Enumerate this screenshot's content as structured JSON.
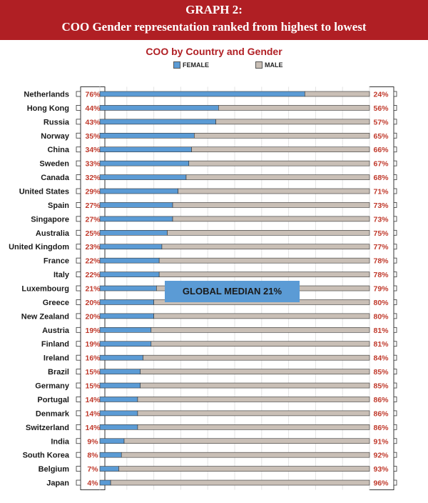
{
  "header": {
    "line1": "GRAPH 2:",
    "line2": "COO Gender representation ranked from highest to lowest"
  },
  "colors": {
    "banner": "#b01f24",
    "female": "#5b9bd5",
    "male": "#c9bfb6",
    "percent_text": "#c0392b"
  },
  "chart_data": {
    "type": "bar",
    "orientation": "horizontal",
    "stacked": true,
    "title": "COO by Country and Gender",
    "legend": [
      "FEMALE",
      "MALE"
    ],
    "legend_position": "top",
    "xlim": [
      0,
      100
    ],
    "categories": [
      "Netherlands",
      "Hong Kong",
      "Russia",
      "Norway",
      "China",
      "Sweden",
      "Canada",
      "United States",
      "Spain",
      "Singapore",
      "Australia",
      "United Kingdom",
      "France",
      "Italy",
      "Luxembourg",
      "Greece",
      "New Zealand",
      "Austria",
      "Finland",
      "Ireland",
      "Brazil",
      "Germany",
      "Portugal",
      "Denmark",
      "Switzerland",
      "India",
      "South Korea",
      "Belgium",
      "Japan"
    ],
    "series": [
      {
        "name": "FEMALE",
        "values": [
          76,
          44,
          43,
          35,
          34,
          33,
          32,
          29,
          27,
          27,
          25,
          23,
          22,
          22,
          21,
          20,
          20,
          19,
          19,
          16,
          15,
          15,
          14,
          14,
          14,
          9,
          8,
          7,
          4
        ]
      },
      {
        "name": "MALE",
        "values": [
          24,
          56,
          57,
          65,
          66,
          67,
          68,
          71,
          73,
          73,
          75,
          77,
          78,
          78,
          79,
          80,
          80,
          81,
          81,
          84,
          85,
          85,
          86,
          86,
          86,
          91,
          92,
          93,
          96
        ]
      }
    ],
    "female_labels": [
      "76%",
      "44%",
      "43%",
      "35%",
      "34%",
      "33%",
      "32%",
      "29%",
      "27%",
      "27%",
      "25%",
      "23%",
      "22%",
      "22%",
      "21%",
      "20%",
      "20%",
      "19%",
      "19%",
      "16%",
      "15%",
      "15%",
      "14%",
      "14%",
      "14%",
      "9%",
      "8%",
      "7%",
      "4%"
    ],
    "male_labels": [
      "24%",
      "56%",
      "57%",
      "65%",
      "66%",
      "67%",
      "68%",
      "71%",
      "73%",
      "73%",
      "75%",
      "77%",
      "78%",
      "78%",
      "79%",
      "80%",
      "80%",
      "81%",
      "81%",
      "84%",
      "85%",
      "85%",
      "86%",
      "86%",
      "86%",
      "91%",
      "92%",
      "93%",
      "96%"
    ],
    "annotation": "GLOBAL MEDIAN 21%"
  }
}
